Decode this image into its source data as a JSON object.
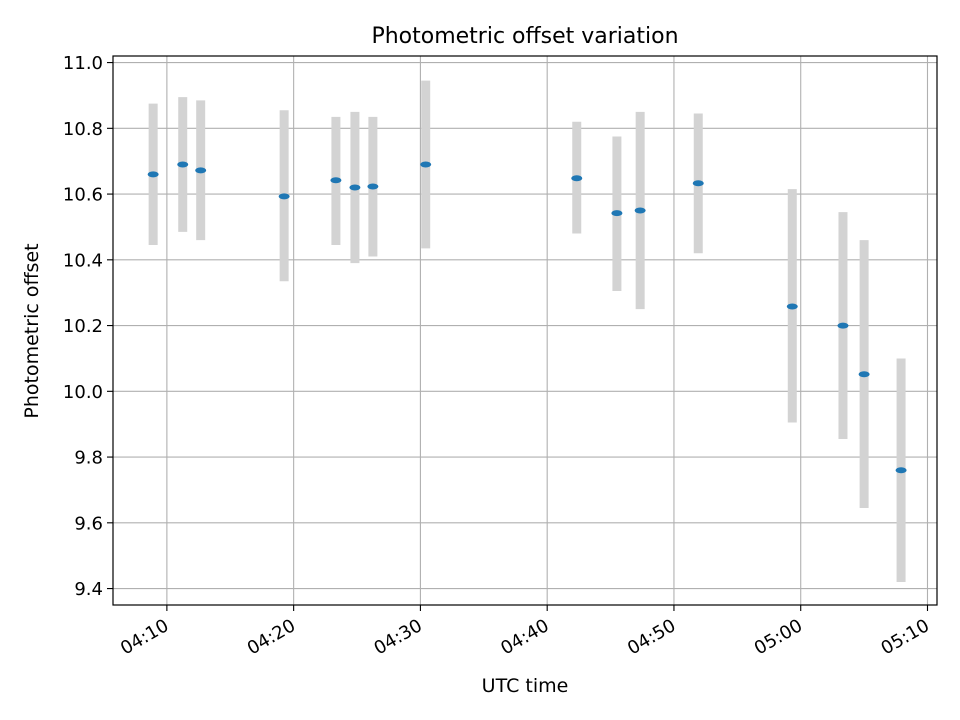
{
  "chart_data": {
    "type": "scatter",
    "title": "Photometric offset variation",
    "xlabel": "UTC time",
    "ylabel": "Photometric offset",
    "x_tick_labels": [
      "04:10",
      "04:20",
      "04:30",
      "04:40",
      "04:50",
      "05:00",
      "05:10"
    ],
    "x_ticks": [
      "04:10",
      "04:20",
      "04:30",
      "04:40",
      "04:50",
      "05:00",
      "05:10"
    ],
    "xlim": [
      "04:05:45",
      "05:10:45"
    ],
    "ylim": [
      9.35,
      11.02
    ],
    "y_ticks": [
      9.4,
      9.6,
      9.8,
      10.0,
      10.2,
      10.4,
      10.6,
      10.8,
      11.0
    ],
    "y_tick_labels": [
      "9.4",
      "9.6",
      "9.8",
      "10.0",
      "10.2",
      "10.4",
      "10.6",
      "10.8",
      "11.0"
    ],
    "grid": true,
    "colors": {
      "point": "#1f77b4",
      "errorbar": "#d3d3d3",
      "grid": "#b0b0b0"
    },
    "points": [
      {
        "x": "04:08:55",
        "y": 10.66,
        "yerr_low": 10.445,
        "yerr_high": 10.875
      },
      {
        "x": "04:11:15",
        "y": 10.69,
        "yerr_low": 10.485,
        "yerr_high": 10.895
      },
      {
        "x": "04:12:40",
        "y": 10.672,
        "yerr_low": 10.46,
        "yerr_high": 10.885
      },
      {
        "x": "04:19:15",
        "y": 10.593,
        "yerr_low": 10.335,
        "yerr_high": 10.855
      },
      {
        "x": "04:23:20",
        "y": 10.642,
        "yerr_low": 10.445,
        "yerr_high": 10.835
      },
      {
        "x": "04:24:50",
        "y": 10.62,
        "yerr_low": 10.39,
        "yerr_high": 10.85
      },
      {
        "x": "04:26:15",
        "y": 10.623,
        "yerr_low": 10.41,
        "yerr_high": 10.835
      },
      {
        "x": "04:30:25",
        "y": 10.69,
        "yerr_low": 10.435,
        "yerr_high": 10.945
      },
      {
        "x": "04:42:20",
        "y": 10.648,
        "yerr_low": 10.48,
        "yerr_high": 10.82
      },
      {
        "x": "04:45:30",
        "y": 10.542,
        "yerr_low": 10.305,
        "yerr_high": 10.775
      },
      {
        "x": "04:47:20",
        "y": 10.55,
        "yerr_low": 10.25,
        "yerr_high": 10.85
      },
      {
        "x": "04:51:55",
        "y": 10.633,
        "yerr_low": 10.42,
        "yerr_high": 10.845
      },
      {
        "x": "04:59:20",
        "y": 10.258,
        "yerr_low": 9.905,
        "yerr_high": 10.615
      },
      {
        "x": "05:03:20",
        "y": 10.2,
        "yerr_low": 9.855,
        "yerr_high": 10.545
      },
      {
        "x": "05:05:00",
        "y": 10.052,
        "yerr_low": 9.645,
        "yerr_high": 10.46
      },
      {
        "x": "05:07:55",
        "y": 9.76,
        "yerr_low": 9.42,
        "yerr_high": 10.1
      }
    ]
  }
}
